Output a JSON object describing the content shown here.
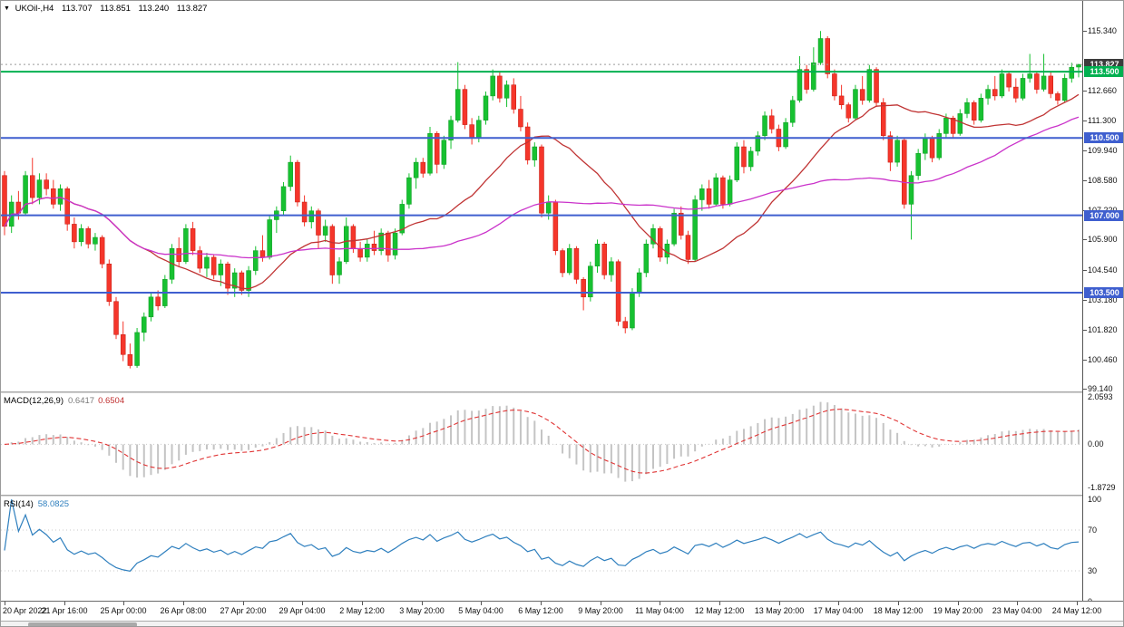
{
  "info": {
    "symbol_tf": "UKOil-,H4",
    "open": "113.707",
    "high": "113.851",
    "low": "113.240",
    "close": "113.827"
  },
  "macd_panel": {
    "name": "MACD(12,26,9)",
    "value": "0.6417",
    "signal": "0.6504"
  },
  "rsi_panel": {
    "name": "RSI(14)",
    "value": "58.0825"
  },
  "chart_data": {
    "type": "candlestick",
    "symbol": "UKOil-",
    "timeframe": "H4",
    "title": "UKOil- H4 candlestick chart with MACD(12,26,9) and RSI(14)",
    "price_axis": {
      "top_price": 116.7,
      "bottom_price": 99.03,
      "labels": [
        "115.340",
        "112.660",
        "111.300",
        "109.940",
        "108.580",
        "107.220",
        "105.900",
        "104.540",
        "103.180",
        "101.820",
        "100.460",
        "99.140"
      ],
      "badges": [
        {
          "text": "113.827",
          "value": 113.827,
          "bg": "#3c3c3c"
        },
        {
          "text": "113.500",
          "value": 113.5,
          "bg": "#00b050"
        },
        {
          "text": "110.500",
          "value": 110.5,
          "bg": "#3f5fcf"
        },
        {
          "text": "107.000",
          "value": 107,
          "bg": "#3f5fcf"
        },
        {
          "text": "103.500",
          "value": 103.5,
          "bg": "#3f5fcf"
        }
      ]
    },
    "hlines": [
      {
        "value": 113.5,
        "color": "#00b050",
        "width": 2
      },
      {
        "value": 110.5,
        "color": "#3f5fcf",
        "width": 2
      },
      {
        "value": 107,
        "color": "#3f5fcf",
        "width": 2
      },
      {
        "value": 103.5,
        "color": "#3f5fcf",
        "width": 2
      }
    ],
    "bid_line": {
      "value": 113.827
    },
    "moving_averages": [
      {
        "period": 21,
        "color": "#c03434"
      },
      {
        "period": 55,
        "color": "#ca32ca"
      }
    ],
    "colors": {
      "up": "#17c131",
      "up_border": "#0d9a22",
      "down": "#f5362b",
      "down_border": "#c2190f",
      "macd_hist": "#c4c4c4",
      "macd_signal": "#e03434",
      "rsi_line": "#2e7fbe",
      "level_dotted": "#c9c9c9"
    },
    "macd": {
      "fast": 12,
      "slow": 26,
      "signal_period": 9,
      "scale_max": 2.0593,
      "scale_min": -1.8729,
      "axis_labels": [
        "2.0593",
        "0.00",
        "-1.8729"
      ]
    },
    "rsi": {
      "period": 14,
      "levels": [
        70,
        30
      ],
      "axis_labels": [
        "100",
        "70",
        "30",
        "0"
      ]
    },
    "time_axis": {
      "labels": [
        "20 Apr 2022",
        "21 Apr 16:00",
        "25 Apr 00:00",
        "26 Apr 08:00",
        "27 Apr 20:00",
        "29 Apr 04:00",
        "2 May 12:00",
        "3 May 20:00",
        "5 May 04:00",
        "6 May 12:00",
        "9 May 20:00",
        "11 May 04:00",
        "12 May 12:00",
        "13 May 20:00",
        "17 May 04:00",
        "18 May 12:00",
        "19 May 20:00",
        "23 May 04:00",
        "24 May 12:00"
      ]
    },
    "ohlc": [
      [
        108.8,
        109.0,
        106.1,
        106.5
      ],
      [
        106.5,
        107.9,
        106.2,
        107.6
      ],
      [
        107.6,
        108.1,
        106.8,
        107.1
      ],
      [
        107.1,
        109.0,
        107.0,
        108.8
      ],
      [
        108.8,
        109.6,
        107.5,
        107.8
      ],
      [
        107.8,
        108.9,
        107.5,
        108.6
      ],
      [
        108.6,
        108.9,
        107.9,
        108.2
      ],
      [
        108.2,
        108.6,
        107.3,
        107.5
      ],
      [
        107.5,
        108.4,
        107.2,
        108.2
      ],
      [
        108.2,
        108.3,
        106.3,
        106.6
      ],
      [
        106.6,
        106.9,
        105.5,
        105.8
      ],
      [
        105.8,
        106.6,
        105.6,
        106.4
      ],
      [
        106.4,
        106.5,
        105.5,
        105.7
      ],
      [
        105.7,
        106.2,
        105.4,
        106.0
      ],
      [
        106.0,
        106.1,
        104.6,
        104.8
      ],
      [
        104.8,
        105.0,
        102.9,
        103.1
      ],
      [
        103.1,
        103.3,
        101.4,
        101.6
      ],
      [
        101.6,
        102.2,
        100.4,
        100.7
      ],
      [
        100.7,
        101.2,
        100.07,
        100.2
      ],
      [
        100.2,
        101.9,
        100.1,
        101.7
      ],
      [
        101.7,
        102.6,
        101.3,
        102.4
      ],
      [
        102.4,
        103.5,
        102.2,
        103.3
      ],
      [
        103.3,
        103.6,
        102.7,
        102.9
      ],
      [
        102.9,
        104.3,
        102.8,
        104.1
      ],
      [
        104.1,
        105.7,
        103.9,
        105.5
      ],
      [
        105.5,
        106.0,
        104.7,
        104.9
      ],
      [
        104.9,
        106.6,
        104.8,
        106.4
      ],
      [
        106.4,
        106.7,
        105.2,
        105.4
      ],
      [
        105.4,
        105.6,
        104.4,
        104.6
      ],
      [
        104.6,
        105.3,
        104.2,
        105.1
      ],
      [
        105.1,
        105.2,
        104.1,
        104.3
      ],
      [
        104.3,
        105.0,
        103.8,
        104.8
      ],
      [
        104.8,
        104.9,
        103.4,
        103.7
      ],
      [
        103.7,
        104.6,
        103.3,
        104.4
      ],
      [
        104.4,
        104.5,
        103.4,
        103.6
      ],
      [
        103.6,
        104.7,
        103.3,
        104.5
      ],
      [
        104.5,
        105.6,
        104.3,
        105.4
      ],
      [
        105.4,
        106.1,
        104.9,
        105.1
      ],
      [
        105.1,
        107.0,
        105.0,
        106.8
      ],
      [
        106.8,
        107.4,
        106.2,
        107.2
      ],
      [
        107.2,
        108.5,
        107.0,
        108.3
      ],
      [
        108.3,
        109.7,
        108.1,
        109.4
      ],
      [
        109.4,
        109.5,
        107.4,
        107.6
      ],
      [
        107.6,
        107.9,
        106.5,
        106.7
      ],
      [
        106.7,
        107.4,
        106.4,
        107.2
      ],
      [
        107.2,
        107.3,
        105.5,
        106.1
      ],
      [
        106.1,
        106.8,
        105.8,
        106.5
      ],
      [
        106.5,
        106.6,
        103.9,
        104.3
      ],
      [
        104.3,
        105.1,
        103.9,
        104.9
      ],
      [
        104.9,
        106.9,
        104.8,
        106.5
      ],
      [
        106.5,
        106.6,
        105.3,
        105.5
      ],
      [
        105.5,
        105.8,
        104.9,
        105.1
      ],
      [
        105.1,
        105.9,
        104.9,
        105.7
      ],
      [
        105.7,
        106.3,
        105.2,
        105.4
      ],
      [
        105.4,
        106.4,
        105.2,
        106.2
      ],
      [
        106.2,
        106.3,
        104.9,
        105.2
      ],
      [
        105.2,
        106.4,
        105.0,
        106.2
      ],
      [
        106.2,
        107.7,
        106.1,
        107.5
      ],
      [
        107.5,
        108.9,
        107.3,
        108.7
      ],
      [
        108.7,
        109.6,
        108.2,
        109.4
      ],
      [
        109.4,
        109.6,
        108.7,
        108.9
      ],
      [
        108.9,
        111.0,
        108.8,
        110.7
      ],
      [
        110.7,
        110.8,
        108.9,
        109.3
      ],
      [
        109.3,
        110.6,
        109.1,
        110.4
      ],
      [
        110.4,
        111.5,
        110.0,
        111.3
      ],
      [
        111.3,
        113.93,
        111.2,
        112.7
      ],
      [
        112.7,
        112.9,
        110.9,
        111.1
      ],
      [
        111.1,
        111.4,
        110.2,
        110.5
      ],
      [
        110.5,
        111.5,
        110.3,
        111.3
      ],
      [
        111.3,
        112.6,
        111.1,
        112.4
      ],
      [
        112.4,
        113.6,
        112.2,
        113.3
      ],
      [
        113.3,
        113.5,
        112.1,
        112.3
      ],
      [
        112.3,
        113.1,
        111.9,
        112.9
      ],
      [
        112.9,
        113.2,
        111.6,
        111.8
      ],
      [
        111.8,
        112.4,
        110.8,
        111.0
      ],
      [
        111.0,
        111.2,
        109.3,
        109.5
      ],
      [
        109.5,
        110.3,
        109.2,
        110.1
      ],
      [
        110.1,
        110.2,
        106.9,
        107.1
      ],
      [
        107.1,
        107.9,
        106.8,
        107.6
      ],
      [
        107.6,
        107.7,
        105.2,
        105.4
      ],
      [
        105.4,
        105.5,
        104.2,
        104.4
      ],
      [
        104.4,
        105.7,
        104.3,
        105.5
      ],
      [
        105.5,
        105.6,
        103.9,
        104.1
      ],
      [
        104.1,
        104.2,
        102.7,
        103.3
      ],
      [
        103.3,
        104.9,
        103.1,
        104.7
      ],
      [
        104.7,
        105.9,
        104.4,
        105.7
      ],
      [
        105.7,
        105.8,
        104.1,
        104.3
      ],
      [
        104.3,
        105.1,
        104.0,
        104.9
      ],
      [
        104.9,
        105.0,
        102.0,
        102.2
      ],
      [
        102.2,
        102.4,
        101.66,
        101.9
      ],
      [
        101.9,
        103.7,
        101.8,
        103.5
      ],
      [
        103.5,
        104.6,
        103.3,
        104.4
      ],
      [
        104.4,
        105.9,
        104.2,
        105.7
      ],
      [
        105.7,
        106.6,
        105.5,
        106.4
      ],
      [
        106.4,
        106.5,
        104.9,
        105.1
      ],
      [
        105.1,
        105.9,
        104.8,
        105.7
      ],
      [
        105.7,
        107.3,
        105.6,
        107.1
      ],
      [
        107.1,
        107.4,
        105.9,
        106.1
      ],
      [
        106.1,
        106.3,
        104.8,
        105.0
      ],
      [
        105.0,
        107.9,
        104.9,
        107.7
      ],
      [
        107.7,
        108.4,
        107.2,
        108.2
      ],
      [
        108.2,
        108.6,
        107.3,
        107.5
      ],
      [
        107.5,
        108.9,
        107.4,
        108.7
      ],
      [
        108.7,
        108.8,
        107.3,
        107.5
      ],
      [
        107.5,
        108.8,
        107.4,
        108.6
      ],
      [
        108.6,
        110.3,
        108.5,
        110.1
      ],
      [
        110.1,
        110.4,
        108.9,
        109.2
      ],
      [
        109.2,
        110.1,
        109.0,
        109.9
      ],
      [
        109.9,
        110.8,
        109.7,
        110.6
      ],
      [
        110.6,
        111.7,
        110.4,
        111.5
      ],
      [
        111.5,
        111.8,
        110.7,
        110.9
      ],
      [
        110.9,
        111.1,
        109.9,
        110.1
      ],
      [
        110.1,
        111.4,
        110.0,
        111.2
      ],
      [
        111.2,
        112.4,
        111.0,
        112.2
      ],
      [
        112.2,
        114.2,
        112.1,
        113.6
      ],
      [
        113.6,
        113.8,
        112.5,
        112.7
      ],
      [
        112.7,
        114.6,
        112.6,
        113.9
      ],
      [
        113.9,
        115.34,
        113.8,
        115.0
      ],
      [
        115.0,
        115.1,
        113.2,
        113.4
      ],
      [
        113.4,
        113.6,
        112.2,
        112.4
      ],
      [
        112.4,
        112.9,
        111.8,
        112.0
      ],
      [
        112.0,
        112.1,
        111.2,
        111.4
      ],
      [
        111.4,
        112.9,
        111.3,
        112.7
      ],
      [
        112.7,
        113.3,
        112.0,
        112.2
      ],
      [
        112.2,
        113.8,
        112.1,
        113.6
      ],
      [
        113.6,
        113.7,
        111.9,
        112.1
      ],
      [
        112.1,
        112.3,
        110.4,
        110.6
      ],
      [
        110.6,
        110.8,
        109.0,
        109.4
      ],
      [
        109.4,
        110.6,
        109.2,
        110.4
      ],
      [
        110.4,
        110.5,
        107.3,
        107.5
      ],
      [
        107.5,
        109.0,
        105.9,
        108.8
      ],
      [
        108.8,
        110.0,
        108.6,
        109.8
      ],
      [
        109.8,
        110.7,
        109.5,
        110.5
      ],
      [
        110.5,
        110.6,
        109.4,
        109.6
      ],
      [
        109.6,
        110.9,
        109.5,
        110.7
      ],
      [
        110.7,
        111.6,
        110.5,
        111.4
      ],
      [
        111.4,
        111.5,
        110.5,
        110.7
      ],
      [
        110.7,
        111.8,
        110.6,
        111.6
      ],
      [
        111.6,
        112.3,
        111.4,
        112.1
      ],
      [
        112.1,
        112.2,
        111.1,
        111.3
      ],
      [
        111.3,
        112.5,
        111.2,
        112.3
      ],
      [
        112.3,
        112.9,
        112.0,
        112.7
      ],
      [
        112.7,
        113.3,
        112.2,
        112.4
      ],
      [
        112.4,
        113.6,
        112.3,
        113.4
      ],
      [
        113.4,
        113.5,
        112.6,
        112.8
      ],
      [
        112.8,
        113.2,
        112.1,
        112.3
      ],
      [
        112.3,
        113.4,
        112.2,
        113.2
      ],
      [
        113.2,
        114.3,
        113.0,
        113.4
      ],
      [
        113.4,
        113.5,
        112.5,
        112.7
      ],
      [
        112.7,
        114.3,
        112.6,
        113.3
      ],
      [
        113.3,
        113.5,
        112.3,
        112.5
      ],
      [
        112.5,
        112.6,
        112.0,
        112.2
      ],
      [
        112.2,
        113.4,
        112.1,
        113.2
      ],
      [
        113.2,
        113.9,
        113.0,
        113.7
      ],
      [
        113.707,
        113.851,
        113.24,
        113.827
      ]
    ]
  }
}
